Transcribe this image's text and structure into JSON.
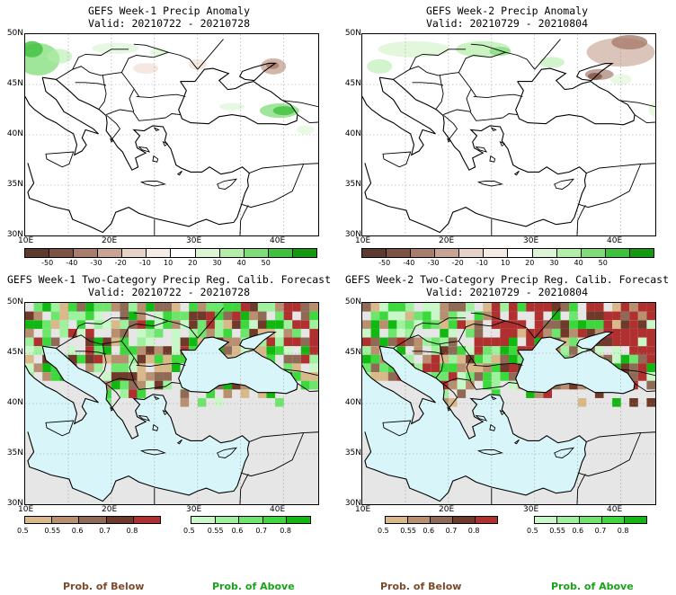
{
  "panels": [
    {
      "title": "GEFS Week-1 Precip Anomaly",
      "valid": "Valid: 20210722 - 20210728"
    },
    {
      "title": "GEFS Week-2 Precip Anomaly",
      "valid": "Valid: 20210729 - 20210804"
    },
    {
      "title": "GEFS Week-1 Two-Category Precip Reg. Calib. Forecast",
      "valid": "Valid: 20210722 - 20210728"
    },
    {
      "title": "GEFS Week-2 Two-Category Precip Reg. Calib. Forecast",
      "valid": "Valid: 20210729 - 20210804"
    }
  ],
  "axes": {
    "lat_labels": [
      "50N",
      "45N",
      "40N",
      "35N",
      "30N"
    ],
    "lon_labels": [
      "10E",
      "20E",
      "30E",
      "40E"
    ]
  },
  "anomaly_colorbar": {
    "labels": [
      "-50",
      "-40",
      "-30",
      "-20",
      "-10",
      "10",
      "20",
      "30",
      "40",
      "50"
    ],
    "colors": [
      "#5c3a2e",
      "#7d5346",
      "#a77d6e",
      "#c8a495",
      "#e7d2c7",
      "#f6ece6",
      "#ffffff",
      "#dcf5d4",
      "#b4ecaa",
      "#7fdc78",
      "#3fc13f",
      "#159915"
    ]
  },
  "prob_below_colorbar": {
    "labels": [
      "0.5",
      "0.55",
      "0.6",
      "0.7",
      "0.8"
    ],
    "colors": [
      "#d9b98a",
      "#b89070",
      "#8f6a55",
      "#6f3a2a",
      "#b03030"
    ]
  },
  "prob_above_colorbar": {
    "labels": [
      "0.5",
      "0.55",
      "0.6",
      "0.7",
      "0.8"
    ],
    "colors": [
      "#c8f7c8",
      "#9ef29e",
      "#6ee66e",
      "#3cd83c",
      "#12b812"
    ]
  },
  "legend": {
    "below_label": "Prob. of Below",
    "above_label": "Prob. of Above",
    "below_color": "#7a4a2a",
    "above_color": "#1aa31a"
  },
  "map_colors": {
    "sea_probability": "#d8f6fa",
    "land_no_signal": "#e6e6e6",
    "anomaly_background": "#ffffff"
  }
}
